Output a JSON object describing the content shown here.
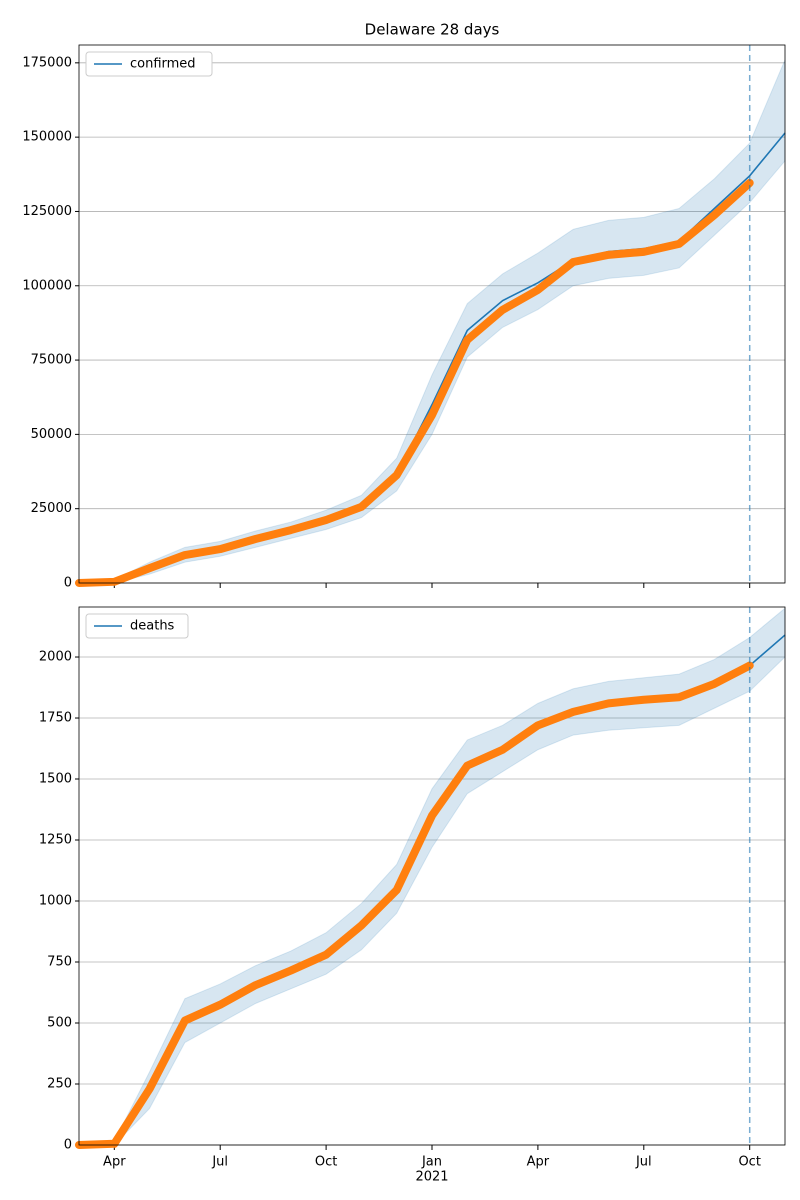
{
  "chart_data": [
    {
      "type": "line",
      "title": "Delaware 28 days",
      "x": [
        "2020-03",
        "2020-04",
        "2020-05",
        "2020-06",
        "2020-07",
        "2020-08",
        "2020-09",
        "2020-10",
        "2020-11",
        "2020-12",
        "2021-01",
        "2021-02",
        "2021-03",
        "2021-04",
        "2021-05",
        "2021-06",
        "2021-07",
        "2021-08",
        "2021-09",
        "2021-10",
        "2021-11"
      ],
      "series": [
        {
          "name": "confirmed",
          "color": "#1f77b4",
          "values": [
            0,
            400,
            5000,
            9400,
            11400,
            14800,
            17800,
            21200,
            25600,
            36500,
            60000,
            85000,
            95000,
            101000,
            108500,
            111500,
            112500,
            115000,
            126000,
            137000,
            151400
          ]
        }
      ],
      "observed": {
        "color": "#ff7f0e",
        "values": [
          0,
          400,
          5000,
          9400,
          11400,
          14800,
          17800,
          21200,
          25600,
          36300,
          56500,
          81800,
          91900,
          98600,
          108000,
          110400,
          111400,
          114100,
          123800,
          134600,
          null
        ]
      },
      "band": {
        "color": "#1f77b4",
        "lower": [
          0,
          0,
          3000,
          7000,
          9000,
          12000,
          15000,
          18000,
          22000,
          31000,
          50000,
          76000,
          86000,
          92000,
          100000,
          102500,
          103500,
          106000,
          117000,
          128000,
          142000
        ],
        "upper": [
          0,
          1000,
          7000,
          12000,
          14000,
          17500,
          20500,
          24500,
          29500,
          42000,
          70000,
          94000,
          104000,
          111000,
          119000,
          122000,
          123000,
          126000,
          136000,
          148000,
          176000
        ]
      },
      "vline": {
        "x": "2021-10",
        "color": "#1f77b4"
      },
      "xlim": [
        "2020-03",
        "2021-11"
      ],
      "ylim": [
        0,
        181000
      ],
      "yticks": [
        0,
        25000,
        50000,
        75000,
        100000,
        125000,
        150000,
        175000
      ],
      "xticks": [
        {
          "value": "2020-04",
          "label": "Apr"
        },
        {
          "value": "2020-07",
          "label": "Jul"
        },
        {
          "value": "2020-10",
          "label": "Oct"
        },
        {
          "value": "2021-01",
          "label": "Jan"
        },
        {
          "value": "2021-04",
          "label": "Apr"
        },
        {
          "value": "2021-07",
          "label": "Jul"
        },
        {
          "value": "2021-10",
          "label": "Oct"
        }
      ],
      "show_xtick_labels": false,
      "grid": true,
      "legend": "upper left"
    },
    {
      "type": "line",
      "x": [
        "2020-03",
        "2020-04",
        "2020-05",
        "2020-06",
        "2020-07",
        "2020-08",
        "2020-09",
        "2020-10",
        "2020-11",
        "2020-12",
        "2021-01",
        "2021-02",
        "2021-03",
        "2021-04",
        "2021-05",
        "2021-06",
        "2021-07",
        "2021-08",
        "2021-09",
        "2021-10",
        "2021-11"
      ],
      "series": [
        {
          "name": "deaths",
          "color": "#1f77b4",
          "values": [
            0,
            5,
            230,
            510,
            575,
            655,
            715,
            780,
            900,
            1045,
            1350,
            1555,
            1620,
            1720,
            1775,
            1810,
            1825,
            1835,
            1890,
            1965,
            2090
          ]
        }
      ],
      "observed": {
        "color": "#ff7f0e",
        "values": [
          0,
          5,
          230,
          510,
          575,
          655,
          715,
          780,
          900,
          1045,
          1350,
          1555,
          1620,
          1720,
          1775,
          1810,
          1825,
          1835,
          1890,
          1965,
          null
        ]
      },
      "band": {
        "color": "#1f77b4",
        "lower": [
          0,
          0,
          150,
          420,
          500,
          580,
          640,
          700,
          800,
          950,
          1220,
          1440,
          1530,
          1620,
          1680,
          1700,
          1710,
          1720,
          1790,
          1860,
          2000
        ],
        "upper": [
          0,
          15,
          300,
          600,
          660,
          735,
          795,
          870,
          990,
          1150,
          1460,
          1660,
          1720,
          1810,
          1870,
          1900,
          1915,
          1930,
          1990,
          2080,
          2200
        ]
      },
      "vline": {
        "x": "2021-10",
        "color": "#1f77b4"
      },
      "xlim": [
        "2020-03",
        "2021-11"
      ],
      "ylim": [
        0,
        2205
      ],
      "yticks": [
        0,
        250,
        500,
        750,
        1000,
        1250,
        1500,
        1750,
        2000
      ],
      "xticks": [
        {
          "value": "2020-04",
          "label": "Apr"
        },
        {
          "value": "2020-07",
          "label": "Jul"
        },
        {
          "value": "2020-10",
          "label": "Oct"
        },
        {
          "value": "2021-01",
          "label": "Jan"
        },
        {
          "value": "2021-04",
          "label": "Apr"
        },
        {
          "value": "2021-07",
          "label": "Jul"
        },
        {
          "value": "2021-10",
          "label": "Oct"
        }
      ],
      "xtick_year": {
        "value": "2021-01",
        "label": "2021"
      },
      "show_xtick_labels": true,
      "grid": true,
      "legend": "upper left"
    }
  ]
}
